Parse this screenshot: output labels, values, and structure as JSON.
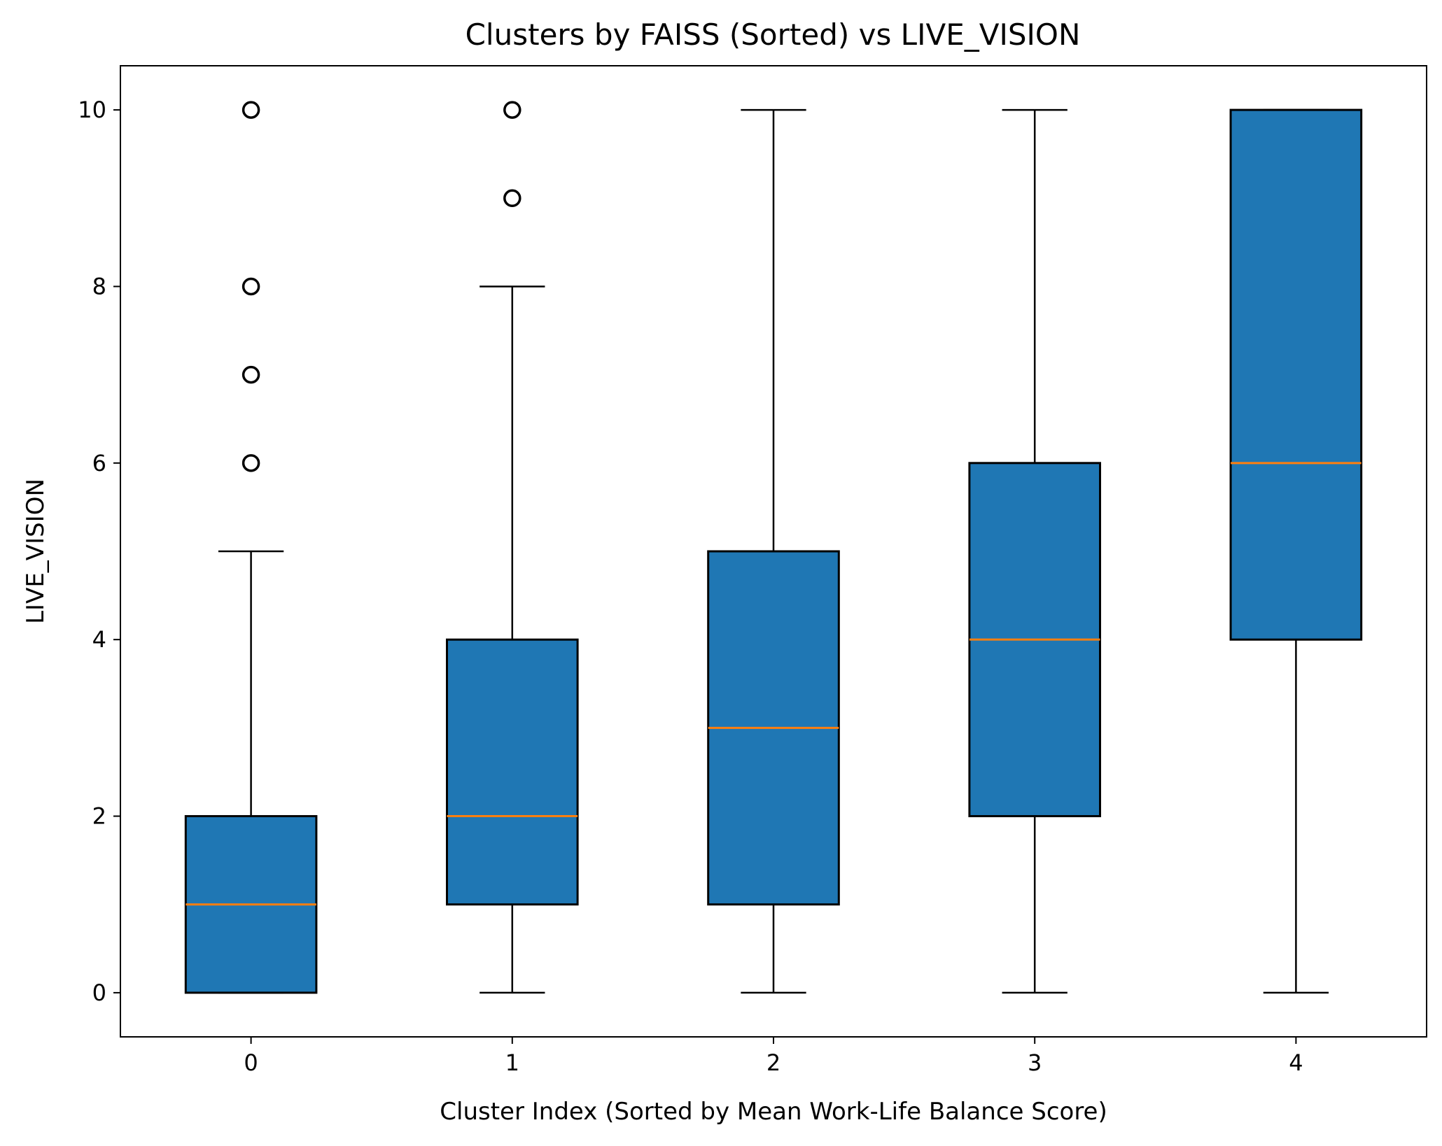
{
  "chart_data": {
    "type": "box",
    "title": "Clusters by FAISS (Sorted) vs LIVE_VISION",
    "xlabel": "Cluster Index (Sorted by Mean Work-Life Balance Score)",
    "ylabel": "LIVE_VISION",
    "categories": [
      "0",
      "1",
      "2",
      "3",
      "4"
    ],
    "ylim": [
      -0.5,
      10.5
    ],
    "yticks": [
      "0",
      "2",
      "4",
      "6",
      "8",
      "10"
    ],
    "grid": false,
    "legend": "none",
    "box_color": "#1f77b4",
    "median_color": "#ff7f0e",
    "boxes": [
      {
        "category": "0",
        "whisker_low": 0,
        "q1": 0,
        "median": 1,
        "q3": 2,
        "whisker_high": 5,
        "outliers": [
          6,
          7,
          8,
          10
        ]
      },
      {
        "category": "1",
        "whisker_low": 0,
        "q1": 1,
        "median": 2,
        "q3": 4,
        "whisker_high": 8,
        "outliers": [
          9,
          10
        ]
      },
      {
        "category": "2",
        "whisker_low": 0,
        "q1": 1,
        "median": 3,
        "q3": 5,
        "whisker_high": 10,
        "outliers": []
      },
      {
        "category": "3",
        "whisker_low": 0,
        "q1": 2,
        "median": 4,
        "q3": 6,
        "whisker_high": 10,
        "outliers": []
      },
      {
        "category": "4",
        "whisker_low": 0,
        "q1": 4,
        "median": 6,
        "q3": 10,
        "whisker_high": 10,
        "outliers": []
      }
    ]
  }
}
